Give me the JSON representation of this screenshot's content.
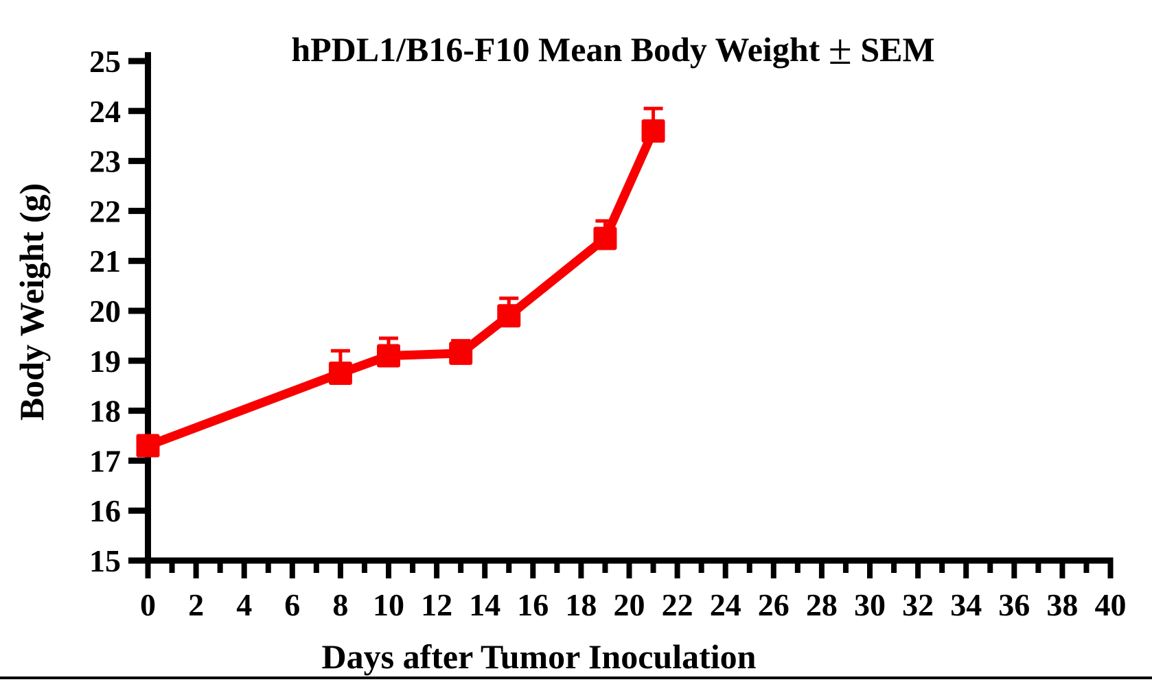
{
  "chart_data": {
    "type": "line",
    "title": "hPDL1/B16-F10 Mean Body Weight ± SEM",
    "title_prefix": "hPDL1/B16-F10 Mean Body Weight ",
    "title_pm": "±",
    "title_suffix": " SEM",
    "xlabel": "Days after Tumor Inoculation",
    "ylabel": "Body Weight (g)",
    "xlim": [
      0,
      40
    ],
    "ylim": [
      15,
      25
    ],
    "x_major_ticks": [
      0,
      2,
      4,
      6,
      8,
      10,
      12,
      14,
      16,
      18,
      20,
      22,
      24,
      26,
      28,
      30,
      32,
      34,
      36,
      38,
      40
    ],
    "x_minor_step": 1,
    "y_ticks": [
      15,
      16,
      17,
      18,
      19,
      20,
      21,
      22,
      23,
      24,
      25
    ],
    "grid": false,
    "legend": "none",
    "error_bars": "SEM, upper caps visible",
    "axis_color": "#000000",
    "background": "#FFFFFF",
    "series": [
      {
        "name": "hPDL1/B16-F10",
        "color": "#F80000",
        "marker": "square",
        "x": [
          0,
          8,
          10,
          13,
          15,
          19,
          21
        ],
        "y": [
          17.3,
          18.75,
          19.1,
          19.15,
          19.9,
          21.45,
          23.6
        ],
        "sem": [
          0.1,
          0.45,
          0.35,
          0.25,
          0.35,
          0.35,
          0.45
        ]
      }
    ]
  },
  "footer": {
    "rule_color": "#000000"
  }
}
